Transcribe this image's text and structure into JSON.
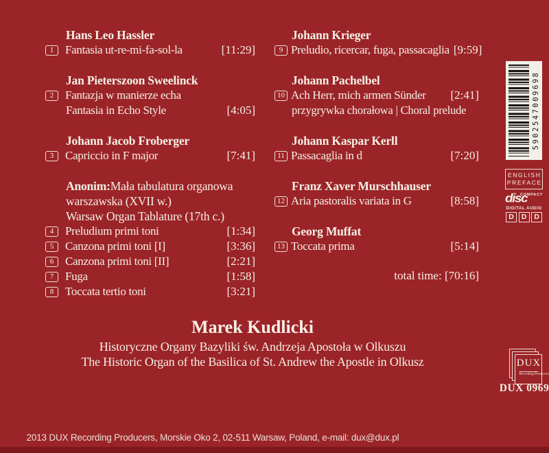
{
  "colors": {
    "background": "#9b2428",
    "bottom_strip": "#7d191d",
    "text": "#f6f0e6",
    "barcode_background": "#f2efe9",
    "barcode_bars": "#161413"
  },
  "tracklist": {
    "left": [
      {
        "artist": "Hans Leo Hassler",
        "tracks": [
          {
            "num": "1",
            "title": "Fantasia ut-re-mi-fa-sol-la",
            "time": "[11:29]"
          }
        ]
      },
      {
        "artist": "Jan Pieterszoon Sweelinck",
        "tracks": [
          {
            "num": "2",
            "title": "Fantazja w manierze echa",
            "title2": "Fantasia in Echo Style",
            "time": "[4:05]"
          }
        ]
      },
      {
        "artist": "Johann Jacob Froberger",
        "tracks": [
          {
            "num": "3",
            "title": "Capriccio in F major",
            "time": "[7:41]"
          }
        ]
      },
      {
        "artist": "Anonim:",
        "artist_rest": " Mała tabulatura organowa",
        "artist_extra": [
          "warszawska (XVII w.)",
          "Warsaw Organ Tablature (17th c.)"
        ],
        "tracks": [
          {
            "num": "4",
            "title": "Preludium primi toni",
            "time": "[1:34]"
          },
          {
            "num": "5",
            "title": "Canzona primi toni [I]",
            "time": "[3:36]"
          },
          {
            "num": "6",
            "title": "Canzona primi toni [II]",
            "time": "[2:21]"
          },
          {
            "num": "7",
            "title": "Fuga",
            "time": "[1:58]"
          },
          {
            "num": "8",
            "title": "Toccata tertio toni",
            "time": "[3:21]"
          }
        ]
      }
    ],
    "right": [
      {
        "artist": "Johann Krieger",
        "tracks": [
          {
            "num": "9",
            "title": "Preludio, ricercar, fuga, passacaglia",
            "time": "[9:59]"
          }
        ]
      },
      {
        "artist": "Johann Pachelbel",
        "tracks": [
          {
            "num": "10",
            "title": "Ach Herr, mich armen Sünder",
            "time": "[2:41]",
            "subtitle": "przygrywka chorałowa | Choral prelude"
          }
        ]
      },
      {
        "artist": "Johann Kaspar Kerll",
        "tracks": [
          {
            "num": "11",
            "title": "Passacaglia in d",
            "time": "[7:20]"
          }
        ]
      },
      {
        "artist": "Franz Xaver Murschhauser",
        "tracks": [
          {
            "num": "12",
            "title": "Aria pastoralis variata in G",
            "time": "[8:58]"
          }
        ]
      },
      {
        "artist": "Georg Muffat",
        "tracks": [
          {
            "num": "13",
            "title": "Toccata prima",
            "time": "[5:14]"
          }
        ]
      }
    ],
    "total_time": "total time: [70:16]"
  },
  "performer": {
    "name": "Marek Kudlicki",
    "line_polish": "Historyczne Organy Bazyliki św. Andrzeja Apostoła w Olkuszu",
    "line_english": "The Historic Organ of the Basilica of St. Andrew the Apostle in Olkusz"
  },
  "sidebar": {
    "barcode_digits": "5902547009698",
    "english_preface": {
      "line1": "ENGLISH",
      "line2": "PREFACE"
    },
    "cd_logo": {
      "top": "COMPACT",
      "middle": "disc",
      "bottom": "DIGITAL AUDIO"
    },
    "ddd": [
      "D",
      "D",
      "D"
    ],
    "dux_logo": {
      "name": "DUX",
      "subtitle": "Recording Producers"
    },
    "catalog_number": "DUX 0969"
  },
  "footer": {
    "credits": "2013 DUX Recording Producers, Morskie Oko 2, 02-511 Warsaw, Poland, e-mail: dux@dux.pl"
  }
}
